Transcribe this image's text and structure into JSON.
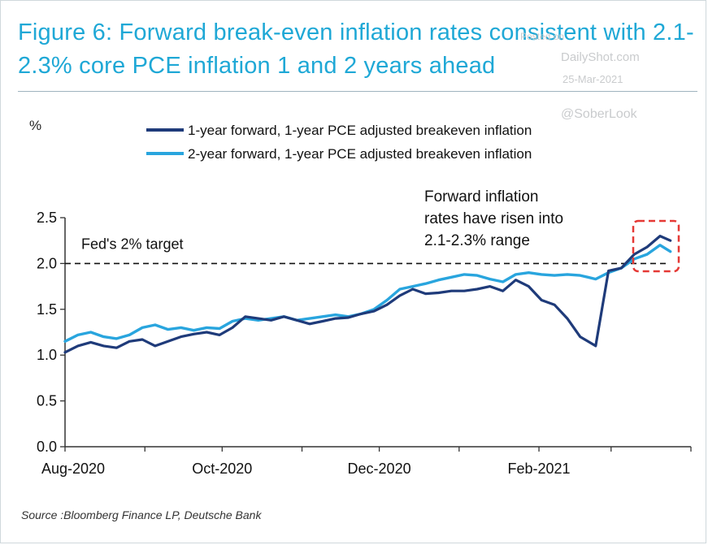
{
  "title": "Figure 6: Forward break-even inflation rates consistent with 2.1-2.3% core PCE inflation 1 and 2 years ahead",
  "source": "Source :Bloomberg Finance LP, Deutsche Bank",
  "watermarks": {
    "posted_on": "Posted on",
    "site": "DailyShot.com",
    "date": "25-Mar-2021",
    "handle": "@SoberLook"
  },
  "chart_data": {
    "type": "line",
    "title": "Figure 6: Forward break-even inflation rates consistent with 2.1-2.3% core PCE inflation 1 and 2 years ahead",
    "ylabel": "%",
    "xlabel": "",
    "ylim": [
      0,
      2.5
    ],
    "yticks": [
      "0.0",
      "0.5",
      "1.0",
      "1.5",
      "2.0",
      "2.5"
    ],
    "xticks": [
      "Aug-2020",
      "Oct-2020",
      "Dec-2020",
      "Feb-2021"
    ],
    "grid": false,
    "legend_position": "top",
    "reference_line": {
      "value": 2.0,
      "label": "Fed's 2% target",
      "style": "dashed"
    },
    "annotation": {
      "lines": [
        "Forward inflation",
        "rates have risen into",
        "2.1-2.3% range"
      ]
    },
    "x": [
      "2020-08-01",
      "2020-08-06",
      "2020-08-11",
      "2020-08-16",
      "2020-08-21",
      "2020-08-26",
      "2020-08-31",
      "2020-09-05",
      "2020-09-10",
      "2020-09-15",
      "2020-09-20",
      "2020-09-25",
      "2020-09-30",
      "2020-10-05",
      "2020-10-10",
      "2020-10-15",
      "2020-10-20",
      "2020-10-25",
      "2020-10-30",
      "2020-11-04",
      "2020-11-09",
      "2020-11-14",
      "2020-11-19",
      "2020-11-24",
      "2020-11-29",
      "2020-12-04",
      "2020-12-09",
      "2020-12-14",
      "2020-12-19",
      "2020-12-24",
      "2020-12-29",
      "2021-01-03",
      "2021-01-08",
      "2021-01-13",
      "2021-01-18",
      "2021-01-23",
      "2021-01-28",
      "2021-02-02",
      "2021-02-07",
      "2021-02-12",
      "2021-02-17",
      "2021-02-20",
      "2021-02-23",
      "2021-02-28",
      "2021-03-05",
      "2021-03-10",
      "2021-03-15",
      "2021-03-20",
      "2021-03-24"
    ],
    "series": [
      {
        "name": "1-year forward, 1-year PCE adjusted breakeven inflation",
        "color": "#1f3b7a",
        "values": [
          1.03,
          1.1,
          1.14,
          1.1,
          1.08,
          1.15,
          1.17,
          1.1,
          1.15,
          1.2,
          1.23,
          1.25,
          1.22,
          1.3,
          1.42,
          1.4,
          1.38,
          1.42,
          1.38,
          1.34,
          1.37,
          1.4,
          1.41,
          1.45,
          1.48,
          1.55,
          1.65,
          1.72,
          1.67,
          1.68,
          1.7,
          1.7,
          1.72,
          1.75,
          1.7,
          1.82,
          1.75,
          1.6,
          1.55,
          1.4,
          1.2,
          1.15,
          1.1,
          1.92,
          1.95,
          2.1,
          2.18,
          2.3,
          2.25
        ]
      },
      {
        "name": "2-year forward, 1-year PCE adjusted breakeven inflation",
        "color": "#29a5de",
        "values": [
          1.15,
          1.22,
          1.25,
          1.2,
          1.18,
          1.22,
          1.3,
          1.33,
          1.28,
          1.3,
          1.27,
          1.3,
          1.29,
          1.37,
          1.4,
          1.38,
          1.4,
          1.42,
          1.38,
          1.4,
          1.42,
          1.44,
          1.42,
          1.45,
          1.5,
          1.6,
          1.72,
          1.75,
          1.78,
          1.82,
          1.85,
          1.88,
          1.87,
          1.83,
          1.8,
          1.88,
          1.9,
          1.88,
          1.87,
          1.88,
          1.87,
          1.85,
          1.83,
          1.9,
          1.95,
          2.05,
          2.1,
          2.2,
          2.13
        ]
      }
    ]
  }
}
